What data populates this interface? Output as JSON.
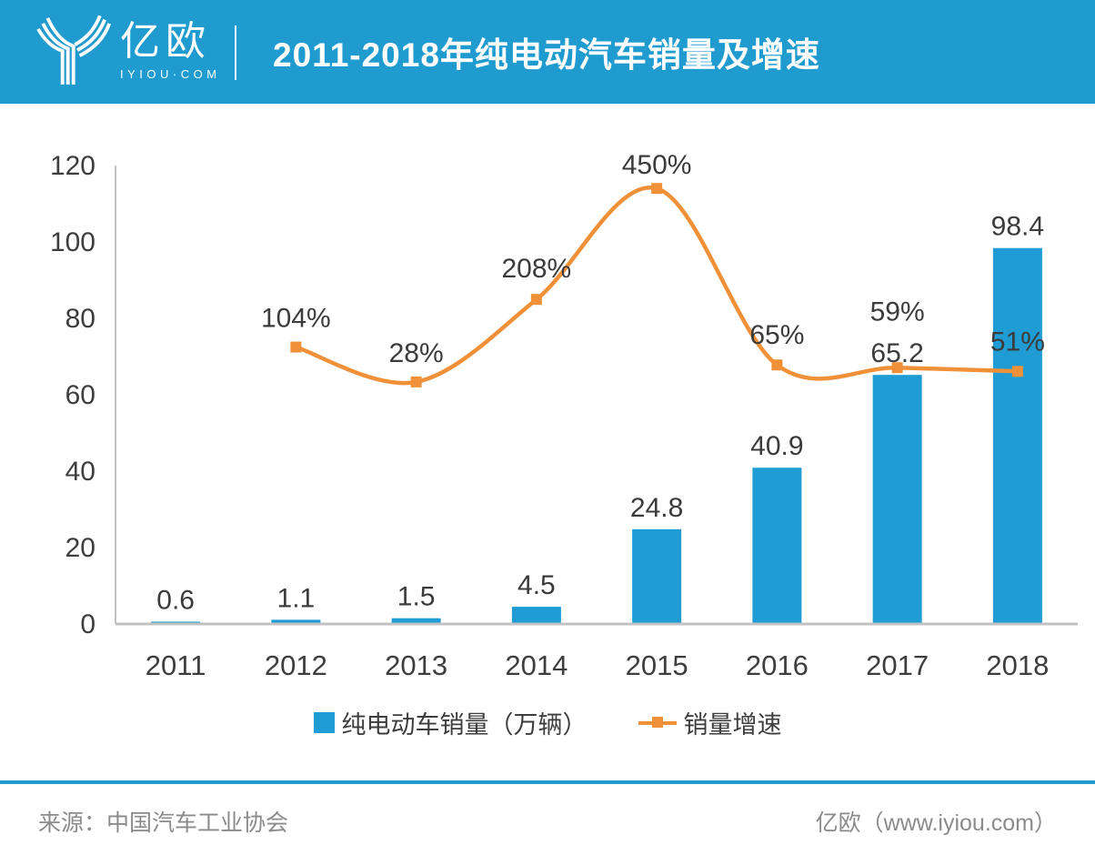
{
  "header": {
    "logo_text": "亿欧",
    "logo_subtext": "IYIOU·COM",
    "title": "2011-2018年纯电动汽车销量及增速"
  },
  "colors": {
    "header_bg": "#1f9bd0",
    "bar": "#1f9cd3",
    "line": "#f0913a",
    "axis": "#c2c2c2",
    "label_text": "#3b3b3b",
    "footer_rule": "#1f9bd0"
  },
  "chart_data": {
    "type": "combo",
    "categories": [
      "2011",
      "2012",
      "2013",
      "2014",
      "2015",
      "2016",
      "2017",
      "2018"
    ],
    "series": [
      {
        "name": "纯电动车销量（万辆）",
        "type": "bar",
        "axis": "primary",
        "values": [
          0.6,
          1.1,
          1.5,
          4.5,
          24.8,
          40.9,
          65.2,
          98.4
        ],
        "labels": [
          "0.6",
          "1.1",
          "1.5",
          "4.5",
          "24.8",
          "40.9",
          "65.2",
          "98.4"
        ]
      },
      {
        "name": "销量增速",
        "type": "line",
        "axis": "secondary",
        "start_index": 1,
        "values": [
          104,
          28,
          208,
          450,
          65,
          59,
          51
        ],
        "labels": [
          "104%",
          "28%",
          "208%",
          "450%",
          "65%",
          "59%",
          "51%"
        ]
      }
    ],
    "ylabel": "",
    "xlabel": "",
    "ylim": [
      0,
      120
    ],
    "yticks": [
      0,
      20,
      40,
      60,
      80,
      100,
      120
    ],
    "ytick_labels": [
      "0",
      "20",
      "40",
      "60",
      "80",
      "100",
      "120"
    ],
    "y2lim": [
      -500,
      500
    ],
    "y2_axis_visible": false,
    "grid": false,
    "legend_position": "bottom"
  },
  "footer": {
    "source": "来源：中国汽车工业协会",
    "site": "亿欧（www.iyiou.com）"
  }
}
